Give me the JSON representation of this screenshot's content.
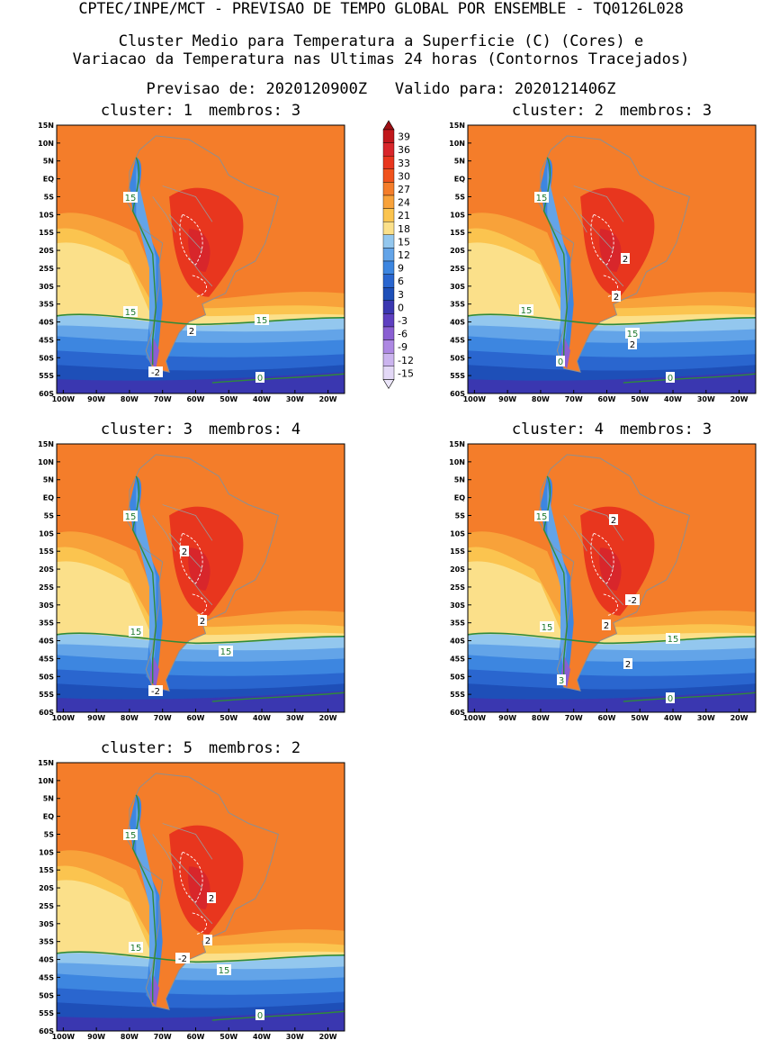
{
  "header": {
    "title": "CPTEC/INPE/MCT - PREVISAO DE TEMPO GLOBAL POR ENSEMBLE - TQ0126L028",
    "subtitle_line1": "Cluster Medio para Temperatura a Superficie (C) (Cores) e",
    "subtitle_line2": "Variacao da Temperatura nas Ultimas 24 horas (Contornos Tracejados)",
    "forecast_label": "Previsao de: 2020120900Z",
    "valid_label": "Valido para: 2020121406Z"
  },
  "axes": {
    "lat_labels": [
      "15N",
      "10N",
      "5N",
      "EQ",
      "5S",
      "10S",
      "15S",
      "20S",
      "25S",
      "30S",
      "35S",
      "40S",
      "45S",
      "50S",
      "55S",
      "60S"
    ],
    "lon_labels": [
      "100W",
      "90W",
      "80W",
      "70W",
      "60W",
      "50W",
      "40W",
      "30W",
      "20W"
    ]
  },
  "colorbar": {
    "labels": [
      "39",
      "36",
      "33",
      "30",
      "27",
      "24",
      "21",
      "18",
      "15",
      "12",
      "9",
      "6",
      "3",
      "0",
      "-3",
      "-6",
      "-9",
      "-12",
      "-15"
    ],
    "colors": [
      "#c0171b",
      "#d8262b",
      "#e8361e",
      "#f0521c",
      "#f47d2a",
      "#f8a23a",
      "#fbc44f",
      "#fbe08a",
      "#93c7ee",
      "#63a4e8",
      "#3d86e0",
      "#2a66cf",
      "#1e4fb8",
      "#3a37b0",
      "#5e3fc0",
      "#8a5fd2",
      "#ad88e2",
      "#cbb4ee",
      "#e3d8f6"
    ],
    "arrow_top_color": "#9e0f14",
    "arrow_bottom_color": "#ece6fa"
  },
  "panels": [
    {
      "cluster_label": "cluster:",
      "cluster_number": "1",
      "members_label": "membros:",
      "members_count": "3",
      "contour_labels": [
        "15",
        "15",
        "2",
        "15",
        "-2",
        "0"
      ]
    },
    {
      "cluster_label": "cluster:",
      "cluster_number": "2",
      "members_label": "membros:",
      "members_count": "3",
      "contour_labels": [
        "15",
        "15",
        "2",
        "2",
        "15",
        "2",
        "0",
        "0"
      ]
    },
    {
      "cluster_label": "cluster:",
      "cluster_number": "3",
      "members_label": "membros:",
      "members_count": "4",
      "contour_labels": [
        "15",
        "2",
        "2",
        "15",
        "15",
        "-2"
      ]
    },
    {
      "cluster_label": "cluster:",
      "cluster_number": "4",
      "members_label": "membros:",
      "members_count": "3",
      "contour_labels": [
        "15",
        "2",
        "-2",
        "2",
        "15",
        "15",
        "2",
        "3",
        "0"
      ]
    },
    {
      "cluster_label": "cluster:",
      "cluster_number": "5",
      "members_label": "membros:",
      "members_count": "2",
      "contour_labels": [
        "15",
        "2",
        "2",
        "15",
        "-2",
        "15",
        "0"
      ]
    }
  ]
}
